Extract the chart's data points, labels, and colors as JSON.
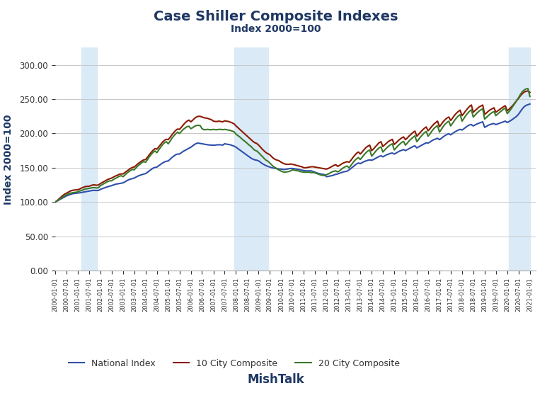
{
  "title": "Case Shiller Composite Indexes",
  "subtitle": "Index 2000=100",
  "xlabel": "MishTalk",
  "ylabel": "Index 2000=100",
  "title_color": "#1F3864",
  "subtitle_color": "#1F3864",
  "xlabel_color": "#1F3864",
  "ylabel_color": "#1F3864",
  "background_color": "#ffffff",
  "grid_color": "#c8c8c8",
  "ylim": [
    0,
    325
  ],
  "yticks": [
    0.0,
    50.0,
    100.0,
    150.0,
    200.0,
    250.0,
    300.0
  ],
  "recession_bands": [
    {
      "start": "2001-03-01",
      "end": "2001-11-01"
    },
    {
      "start": "2007-12-01",
      "end": "2009-06-01"
    },
    {
      "start": "2020-02-01",
      "end": "2021-01-01"
    }
  ],
  "recession_color": "#DAEAF7",
  "line_national": {
    "label": "National Index",
    "color": "#2E4FAA"
  },
  "line_10city": {
    "label": "10 City Composite",
    "color": "#8B1A00"
  },
  "line_20city": {
    "label": "20 City Composite",
    "color": "#3A7A28"
  },
  "dates": [
    "2000-01-01",
    "2000-02-01",
    "2000-03-01",
    "2000-04-01",
    "2000-05-01",
    "2000-06-01",
    "2000-07-01",
    "2000-08-01",
    "2000-09-01",
    "2000-10-01",
    "2000-11-01",
    "2000-12-01",
    "2001-01-01",
    "2001-02-01",
    "2001-03-01",
    "2001-04-01",
    "2001-05-01",
    "2001-06-01",
    "2001-07-01",
    "2001-08-01",
    "2001-09-01",
    "2001-10-01",
    "2001-11-01",
    "2001-12-01",
    "2002-01-01",
    "2002-02-01",
    "2002-03-01",
    "2002-04-01",
    "2002-05-01",
    "2002-06-01",
    "2002-07-01",
    "2002-08-01",
    "2002-09-01",
    "2002-10-01",
    "2002-11-01",
    "2002-12-01",
    "2003-01-01",
    "2003-02-01",
    "2003-03-01",
    "2003-04-01",
    "2003-05-01",
    "2003-06-01",
    "2003-07-01",
    "2003-08-01",
    "2003-09-01",
    "2003-10-01",
    "2003-11-01",
    "2003-12-01",
    "2004-01-01",
    "2004-02-01",
    "2004-03-01",
    "2004-04-01",
    "2004-05-01",
    "2004-06-01",
    "2004-07-01",
    "2004-08-01",
    "2004-09-01",
    "2004-10-01",
    "2004-11-01",
    "2004-12-01",
    "2005-01-01",
    "2005-02-01",
    "2005-03-01",
    "2005-04-01",
    "2005-05-01",
    "2005-06-01",
    "2005-07-01",
    "2005-08-01",
    "2005-09-01",
    "2005-10-01",
    "2005-11-01",
    "2005-12-01",
    "2006-01-01",
    "2006-02-01",
    "2006-03-01",
    "2006-04-01",
    "2006-05-01",
    "2006-06-01",
    "2006-07-01",
    "2006-08-01",
    "2006-09-01",
    "2006-10-01",
    "2006-11-01",
    "2006-12-01",
    "2007-01-01",
    "2007-02-01",
    "2007-03-01",
    "2007-04-01",
    "2007-05-01",
    "2007-06-01",
    "2007-07-01",
    "2007-08-01",
    "2007-09-01",
    "2007-10-01",
    "2007-11-01",
    "2007-12-01",
    "2008-01-01",
    "2008-02-01",
    "2008-03-01",
    "2008-04-01",
    "2008-05-01",
    "2008-06-01",
    "2008-07-01",
    "2008-08-01",
    "2008-09-01",
    "2008-10-01",
    "2008-11-01",
    "2008-12-01",
    "2009-01-01",
    "2009-02-01",
    "2009-03-01",
    "2009-04-01",
    "2009-05-01",
    "2009-06-01",
    "2009-07-01",
    "2009-08-01",
    "2009-09-01",
    "2009-10-01",
    "2009-11-01",
    "2009-12-01",
    "2010-01-01",
    "2010-02-01",
    "2010-03-01",
    "2010-04-01",
    "2010-05-01",
    "2010-06-01",
    "2010-07-01",
    "2010-08-01",
    "2010-09-01",
    "2010-10-01",
    "2010-11-01",
    "2010-12-01",
    "2011-01-01",
    "2011-02-01",
    "2011-03-01",
    "2011-04-01",
    "2011-05-01",
    "2011-06-01",
    "2011-07-01",
    "2011-08-01",
    "2011-09-01",
    "2011-10-01",
    "2011-11-01",
    "2011-12-01",
    "2012-01-01",
    "2012-02-01",
    "2012-03-01",
    "2012-04-01",
    "2012-05-01",
    "2012-06-01",
    "2012-07-01",
    "2012-08-01",
    "2012-09-01",
    "2012-10-01",
    "2012-11-01",
    "2012-12-01",
    "2013-01-01",
    "2013-02-01",
    "2013-03-01",
    "2013-04-01",
    "2013-05-01",
    "2013-06-01",
    "2013-07-01",
    "2013-08-01",
    "2013-09-01",
    "2013-10-01",
    "2013-11-01",
    "2013-12-01",
    "2014-01-01",
    "2014-02-01",
    "2014-03-01",
    "2014-04-01",
    "2014-05-01",
    "2014-06-01",
    "2014-07-01",
    "2014-08-01",
    "2014-09-01",
    "2014-10-01",
    "2014-11-01",
    "2014-12-01",
    "2015-01-01",
    "2015-02-01",
    "2015-03-01",
    "2015-04-01",
    "2015-05-01",
    "2015-06-01",
    "2015-07-01",
    "2015-08-01",
    "2015-09-01",
    "2015-10-01",
    "2015-11-01",
    "2015-12-01",
    "2016-01-01",
    "2016-02-01",
    "2016-03-01",
    "2016-04-01",
    "2016-05-01",
    "2016-06-01",
    "2016-07-01",
    "2016-08-01",
    "2016-09-01",
    "2016-10-01",
    "2016-11-01",
    "2016-12-01",
    "2017-01-01",
    "2017-02-01",
    "2017-03-01",
    "2017-04-01",
    "2017-05-01",
    "2017-06-01",
    "2017-07-01",
    "2017-08-01",
    "2017-09-01",
    "2017-10-01",
    "2017-11-01",
    "2017-12-01",
    "2018-01-01",
    "2018-02-01",
    "2018-03-01",
    "2018-04-01",
    "2018-05-01",
    "2018-06-01",
    "2018-07-01",
    "2018-08-01",
    "2018-09-01",
    "2018-10-01",
    "2018-11-01",
    "2018-12-01",
    "2019-01-01",
    "2019-02-01",
    "2019-03-01",
    "2019-04-01",
    "2019-05-01",
    "2019-06-01",
    "2019-07-01",
    "2019-08-01",
    "2019-09-01",
    "2019-10-01",
    "2019-11-01",
    "2019-12-01",
    "2020-01-01",
    "2020-02-01",
    "2020-03-01",
    "2020-04-01",
    "2020-05-01",
    "2020-06-01",
    "2020-07-01",
    "2020-08-01",
    "2020-09-01",
    "2020-10-01",
    "2020-11-01",
    "2020-12-01",
    "2021-01-01"
  ],
  "national": [
    100.0,
    101.5,
    103.0,
    104.5,
    106.0,
    107.5,
    109.0,
    110.0,
    111.0,
    112.0,
    112.5,
    112.8,
    113.0,
    113.5,
    114.0,
    114.5,
    115.0,
    115.5,
    116.0,
    116.5,
    117.0,
    117.0,
    116.8,
    117.0,
    118.5,
    119.5,
    120.5,
    121.5,
    122.5,
    123.2,
    124.0,
    125.0,
    126.0,
    126.5,
    127.0,
    127.5,
    128.0,
    129.5,
    131.0,
    132.5,
    133.5,
    134.2,
    135.0,
    136.5,
    138.0,
    139.0,
    140.0,
    140.8,
    141.5,
    143.5,
    145.5,
    147.5,
    149.5,
    150.5,
    151.0,
    153.0,
    155.0,
    157.0,
    158.5,
    159.5,
    160.0,
    162.5,
    165.0,
    167.0,
    169.0,
    170.0,
    170.0,
    172.0,
    174.0,
    175.5,
    177.0,
    178.5,
    180.0,
    182.0,
    184.0,
    185.5,
    186.0,
    185.5,
    185.0,
    184.5,
    184.0,
    183.5,
    183.2,
    183.0,
    183.0,
    183.0,
    183.5,
    183.5,
    183.5,
    183.0,
    185.0,
    184.5,
    184.0,
    183.5,
    182.5,
    181.5,
    180.0,
    178.0,
    176.0,
    174.0,
    172.0,
    170.0,
    168.0,
    166.0,
    164.0,
    162.5,
    161.5,
    161.0,
    160.0,
    158.0,
    156.0,
    154.5,
    153.0,
    152.0,
    151.0,
    150.0,
    149.5,
    149.0,
    148.5,
    148.0,
    148.0,
    147.5,
    147.5,
    148.0,
    148.5,
    149.0,
    149.0,
    148.5,
    148.0,
    147.5,
    147.0,
    146.5,
    146.0,
    145.5,
    145.5,
    145.5,
    145.5,
    144.5,
    143.5,
    142.5,
    141.5,
    141.0,
    140.5,
    140.0,
    137.0,
    137.5,
    138.0,
    138.5,
    139.5,
    140.5,
    141.0,
    142.0,
    143.0,
    144.0,
    144.5,
    145.0,
    147.0,
    149.0,
    151.0,
    153.5,
    155.5,
    157.0,
    156.0,
    157.5,
    159.0,
    160.0,
    161.0,
    161.5,
    161.0,
    162.0,
    163.5,
    165.0,
    166.5,
    167.5,
    166.0,
    167.5,
    169.0,
    170.0,
    171.0,
    171.5,
    170.0,
    171.5,
    173.0,
    174.5,
    175.5,
    176.5,
    175.0,
    176.5,
    178.0,
    179.5,
    181.0,
    182.0,
    179.0,
    180.5,
    182.0,
    183.5,
    185.0,
    186.5,
    186.0,
    187.5,
    189.5,
    191.0,
    192.0,
    193.0,
    191.0,
    193.0,
    195.0,
    197.0,
    198.5,
    199.5,
    198.0,
    200.0,
    202.0,
    203.5,
    205.0,
    206.0,
    205.0,
    207.0,
    209.0,
    211.0,
    212.5,
    213.0,
    211.0,
    212.5,
    214.0,
    215.0,
    216.0,
    217.0,
    209.0,
    210.5,
    212.0,
    213.0,
    214.0,
    214.5,
    213.0,
    214.0,
    215.0,
    216.0,
    217.0,
    218.0,
    216.0,
    217.5,
    219.0,
    221.0,
    223.0,
    225.0,
    228.0,
    232.0,
    236.0,
    239.0,
    241.0,
    242.0,
    243.0
  ],
  "city10": [
    100.0,
    102.0,
    104.5,
    107.0,
    109.5,
    111.5,
    113.0,
    114.5,
    116.0,
    117.0,
    117.5,
    117.8,
    118.0,
    119.0,
    120.5,
    121.5,
    122.5,
    123.0,
    123.0,
    124.0,
    125.0,
    125.0,
    124.5,
    125.0,
    127.0,
    128.5,
    130.0,
    131.5,
    133.0,
    134.0,
    135.0,
    136.5,
    138.0,
    139.0,
    140.5,
    141.0,
    141.0,
    143.0,
    145.0,
    147.0,
    149.0,
    150.5,
    151.0,
    153.5,
    156.0,
    158.0,
    160.0,
    161.5,
    162.0,
    165.5,
    169.0,
    172.5,
    175.5,
    178.0,
    177.0,
    180.5,
    184.0,
    187.5,
    190.0,
    191.5,
    191.0,
    194.5,
    198.0,
    201.5,
    204.5,
    206.5,
    206.0,
    209.0,
    212.5,
    215.5,
    218.0,
    219.5,
    217.0,
    219.5,
    222.0,
    224.0,
    225.0,
    225.0,
    224.0,
    223.0,
    222.5,
    222.0,
    221.0,
    220.0,
    218.0,
    217.5,
    217.5,
    218.0,
    217.5,
    217.0,
    218.5,
    218.0,
    217.5,
    216.5,
    215.5,
    214.0,
    211.0,
    208.5,
    206.0,
    203.5,
    201.0,
    198.5,
    196.0,
    193.5,
    191.0,
    188.5,
    186.5,
    185.5,
    183.0,
    180.0,
    177.0,
    174.5,
    172.0,
    170.5,
    169.0,
    166.0,
    163.5,
    162.0,
    161.0,
    160.0,
    158.0,
    156.5,
    155.5,
    155.0,
    155.0,
    155.5,
    155.0,
    154.5,
    153.5,
    153.0,
    152.0,
    151.5,
    150.0,
    150.0,
    150.5,
    151.0,
    151.5,
    151.5,
    151.0,
    150.5,
    150.0,
    149.5,
    149.0,
    148.5,
    148.0,
    149.0,
    150.5,
    152.0,
    153.5,
    154.5,
    152.0,
    153.5,
    155.5,
    157.0,
    158.0,
    159.0,
    158.0,
    161.0,
    164.5,
    168.0,
    171.0,
    173.0,
    170.0,
    173.0,
    176.5,
    179.5,
    181.5,
    183.0,
    175.0,
    177.5,
    180.5,
    183.5,
    186.5,
    188.0,
    181.0,
    183.5,
    186.0,
    188.5,
    190.0,
    191.5,
    184.0,
    186.5,
    189.0,
    191.5,
    193.5,
    195.0,
    191.0,
    193.5,
    196.5,
    199.0,
    201.5,
    203.5,
    196.0,
    199.0,
    202.0,
    205.0,
    207.5,
    209.5,
    204.0,
    207.0,
    210.5,
    213.5,
    216.0,
    218.0,
    210.0,
    213.5,
    217.0,
    220.0,
    222.5,
    224.0,
    219.0,
    222.5,
    226.5,
    229.5,
    232.0,
    234.0,
    226.0,
    229.5,
    233.0,
    236.5,
    239.5,
    241.5,
    231.0,
    233.5,
    236.0,
    238.5,
    240.0,
    241.5,
    228.0,
    230.0,
    232.5,
    234.5,
    236.0,
    237.5,
    231.0,
    233.0,
    235.0,
    237.0,
    239.0,
    240.5,
    233.0,
    235.5,
    238.0,
    241.0,
    244.5,
    248.0,
    251.0,
    255.0,
    258.0,
    260.5,
    261.5,
    262.0,
    260.0
  ],
  "city20": [
    100.0,
    101.5,
    103.5,
    105.5,
    107.5,
    109.0,
    110.5,
    112.0,
    113.0,
    113.5,
    114.0,
    114.2,
    115.0,
    116.0,
    117.0,
    118.0,
    119.0,
    119.5,
    120.0,
    120.5,
    121.0,
    121.0,
    120.5,
    121.0,
    124.0,
    125.5,
    127.0,
    128.5,
    130.0,
    131.0,
    131.0,
    133.0,
    134.5,
    136.0,
    137.5,
    138.5,
    137.0,
    139.5,
    142.0,
    144.0,
    146.0,
    147.5,
    147.0,
    150.0,
    153.0,
    155.0,
    157.5,
    159.0,
    158.0,
    162.0,
    166.0,
    169.5,
    172.5,
    174.5,
    172.0,
    176.0,
    180.0,
    183.5,
    186.5,
    188.0,
    185.0,
    189.0,
    193.0,
    196.5,
    199.5,
    202.0,
    200.0,
    203.0,
    206.0,
    208.0,
    210.0,
    210.5,
    207.0,
    208.5,
    210.5,
    211.5,
    212.0,
    211.5,
    207.0,
    205.5,
    205.5,
    206.0,
    205.5,
    205.5,
    206.0,
    205.5,
    205.5,
    206.0,
    206.0,
    205.5,
    206.0,
    205.5,
    205.0,
    204.5,
    203.5,
    202.5,
    199.0,
    197.0,
    195.0,
    192.5,
    190.0,
    188.0,
    185.5,
    183.0,
    181.0,
    178.0,
    175.5,
    174.5,
    172.0,
    169.0,
    166.5,
    163.5,
    161.0,
    159.5,
    157.0,
    154.0,
    151.5,
    150.0,
    148.0,
    146.5,
    145.0,
    144.0,
    143.5,
    144.0,
    144.5,
    145.5,
    147.0,
    146.5,
    146.0,
    145.5,
    144.5,
    144.0,
    143.5,
    143.5,
    143.5,
    143.5,
    143.0,
    143.0,
    142.5,
    141.5,
    140.5,
    139.5,
    139.0,
    138.5,
    140.0,
    141.0,
    142.5,
    144.0,
    145.0,
    145.5,
    144.0,
    145.5,
    148.0,
    150.0,
    151.5,
    152.5,
    150.0,
    153.5,
    157.0,
    160.5,
    163.0,
    165.0,
    162.0,
    165.5,
    169.0,
    172.0,
    174.5,
    176.0,
    167.0,
    170.0,
    173.5,
    176.5,
    179.0,
    180.5,
    173.0,
    176.0,
    179.0,
    181.5,
    183.5,
    185.0,
    176.0,
    179.0,
    182.0,
    184.5,
    187.0,
    188.5,
    183.0,
    186.0,
    189.5,
    192.0,
    194.5,
    196.5,
    188.0,
    191.5,
    195.0,
    198.0,
    201.0,
    203.0,
    196.0,
    199.5,
    203.5,
    207.0,
    209.5,
    211.5,
    202.0,
    206.0,
    210.0,
    213.5,
    216.0,
    218.0,
    211.0,
    215.0,
    219.0,
    222.5,
    225.5,
    227.5,
    218.0,
    222.0,
    226.0,
    229.5,
    232.5,
    234.5,
    224.0,
    227.0,
    230.0,
    232.5,
    234.5,
    236.0,
    221.0,
    223.5,
    226.0,
    228.5,
    230.5,
    232.0,
    226.0,
    228.5,
    231.0,
    233.0,
    235.5,
    237.0,
    229.0,
    232.0,
    235.5,
    239.5,
    243.5,
    248.0,
    252.0,
    257.0,
    261.0,
    263.5,
    265.0,
    265.5,
    254.0
  ]
}
